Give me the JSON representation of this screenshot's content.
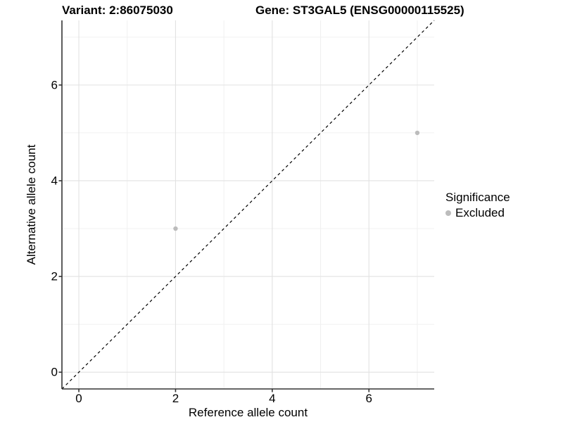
{
  "header": {
    "variant_title": "Variant: 2:86075030",
    "gene_title": "Gene: ST3GAL5 (ENSG00000115525)"
  },
  "chart_data": {
    "type": "scatter",
    "xlabel": "Reference allele count",
    "ylabel": "Alternative allele count",
    "xlim": [
      -0.35,
      7.35
    ],
    "ylim": [
      -0.35,
      7.35
    ],
    "x_ticks": [
      0,
      2,
      4,
      6
    ],
    "y_ticks": [
      0,
      2,
      4,
      6
    ],
    "x_minor_ticks": [
      1,
      3,
      5,
      7
    ],
    "y_minor_ticks": [
      1,
      3,
      5,
      7
    ],
    "grid": true,
    "points": [
      {
        "x": 2,
        "y": 3,
        "series": "Excluded"
      },
      {
        "x": 7,
        "y": 5,
        "series": "Excluded"
      }
    ],
    "reference_line": {
      "type": "identity",
      "style": "dashed",
      "color": "#000000"
    },
    "legend": {
      "title": "Significance",
      "position": "right",
      "items": [
        {
          "label": "Excluded",
          "color": "#bcbcbc"
        }
      ]
    },
    "colors": {
      "point": "#bcbcbc",
      "grid_major": "#e2e2e2",
      "grid_minor": "#f0f0f0",
      "axis": "#333333",
      "background": "#ffffff"
    }
  }
}
